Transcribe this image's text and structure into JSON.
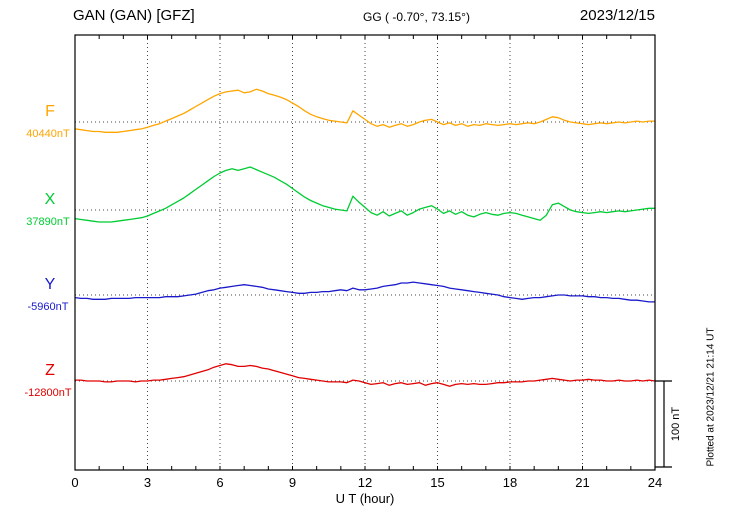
{
  "header": {
    "station": "GAN (GAN)  [GFZ]",
    "coords": "GG ( -0.70°,  73.15°)",
    "date": "2023/12/15"
  },
  "footer": {
    "xlabel": "U T (hour)"
  },
  "side": {
    "plotted_at": "Plotted at 2023/12/21 21:14 UT",
    "scale_label": "100 nT"
  },
  "chart_data": {
    "type": "line",
    "title": "GAN (GAN) [GFZ] magnetogram",
    "date": "2023/12/15",
    "xlabel": "U T (hour)",
    "x_start_hour": 0,
    "x_end_hour": 24,
    "sample_step_hours": 0.25,
    "x_ticks": [
      0,
      3,
      6,
      9,
      12,
      15,
      18,
      21,
      24
    ],
    "scale_bar_nT": 100,
    "scale_bar_label": "100 nT",
    "grid": "dotted vertical every 3 h, dotted baseline per trace",
    "series": [
      {
        "name": "F",
        "color": "#ffa500",
        "baseline_label": "40440nT",
        "baseline_nT": 40440,
        "delta_nT": [
          -8,
          -9,
          -10,
          -11,
          -11,
          -12,
          -12,
          -12,
          -11,
          -10,
          -9,
          -8,
          -6,
          -4,
          -2,
          1,
          4,
          7,
          10,
          14,
          18,
          22,
          26,
          30,
          33,
          35,
          36,
          37,
          34,
          35,
          38,
          36,
          33,
          31,
          29,
          26,
          22,
          18,
          13,
          9,
          6,
          4,
          2,
          1,
          0,
          -1,
          13,
          8,
          3,
          -2,
          -5,
          -3,
          -6,
          -4,
          -2,
          -5,
          -3,
          0,
          2,
          3,
          0,
          -3,
          -1,
          -4,
          -2,
          -5,
          -3,
          -4,
          -2,
          -3,
          -4,
          -3,
          -2,
          -3,
          -2,
          -1,
          -2,
          0,
          3,
          6,
          5,
          2,
          0,
          -1,
          -2,
          -3,
          -2,
          -1,
          -2,
          -1,
          0,
          -1,
          0,
          1,
          0,
          1,
          1
        ]
      },
      {
        "name": "X",
        "color": "#00cc33",
        "baseline_label": "37890nT",
        "baseline_nT": 37890,
        "delta_nT": [
          -10,
          -11,
          -12,
          -13,
          -14,
          -14,
          -14,
          -13,
          -12,
          -11,
          -10,
          -9,
          -7,
          -4,
          -1,
          2,
          6,
          10,
          14,
          19,
          24,
          29,
          34,
          39,
          43,
          46,
          48,
          46,
          48,
          50,
          47,
          44,
          41,
          38,
          34,
          30,
          25,
          20,
          15,
          11,
          8,
          5,
          3,
          1,
          0,
          -1,
          16,
          9,
          3,
          -3,
          -6,
          -2,
          -7,
          -4,
          -1,
          -6,
          -3,
          1,
          3,
          5,
          1,
          -4,
          -1,
          -5,
          -2,
          -6,
          -8,
          -5,
          -3,
          -5,
          -6,
          -4,
          -3,
          -4,
          -6,
          -8,
          -10,
          -12,
          -6,
          6,
          8,
          4,
          0,
          -2,
          -3,
          -4,
          -3,
          -2,
          -3,
          -2,
          -1,
          -2,
          -1,
          0,
          1,
          2,
          2
        ]
      },
      {
        "name": "Y",
        "color": "#1a1acc",
        "baseline_label": "-5960nT",
        "baseline_nT": -5960,
        "delta_nT": [
          -3,
          -4,
          -4,
          -5,
          -5,
          -5,
          -4,
          -4,
          -4,
          -4,
          -3,
          -3,
          -3,
          -3,
          -3,
          -2,
          -2,
          -2,
          -1,
          0,
          1,
          3,
          5,
          6,
          8,
          9,
          10,
          11,
          12,
          11,
          10,
          9,
          7,
          6,
          5,
          4,
          3,
          2,
          2,
          3,
          3,
          4,
          4,
          5,
          6,
          5,
          8,
          6,
          6,
          7,
          8,
          10,
          11,
          12,
          14,
          14,
          15,
          14,
          13,
          12,
          11,
          10,
          8,
          7,
          6,
          5,
          4,
          3,
          2,
          1,
          0,
          -2,
          -3,
          -4,
          -5,
          -4,
          -3,
          -3,
          -2,
          -1,
          0,
          0,
          -1,
          -1,
          -1,
          -2,
          -2,
          -3,
          -3,
          -4,
          -4,
          -5,
          -6,
          -6,
          -7,
          -8,
          -8
        ]
      },
      {
        "name": "Z",
        "color": "#e00000",
        "baseline_label": "-12800nT",
        "baseline_nT": -12800,
        "delta_nT": [
          1,
          1,
          0,
          0,
          0,
          -1,
          -1,
          0,
          0,
          0,
          -1,
          0,
          0,
          1,
          1,
          2,
          3,
          4,
          5,
          7,
          9,
          11,
          13,
          16,
          18,
          20,
          19,
          17,
          17,
          18,
          17,
          15,
          14,
          12,
          10,
          8,
          6,
          4,
          3,
          2,
          1,
          0,
          -1,
          -1,
          -1,
          -2,
          1,
          0,
          -2,
          -4,
          -3,
          -2,
          -5,
          -3,
          -2,
          -4,
          -3,
          -2,
          -5,
          -3,
          -2,
          -4,
          -6,
          -4,
          -3,
          -4,
          -3,
          -4,
          -4,
          -3,
          -2,
          -2,
          -1,
          -1,
          -1,
          0,
          0,
          1,
          2,
          3,
          2,
          1,
          0,
          1,
          1,
          2,
          1,
          1,
          0,
          0,
          1,
          0,
          0,
          1,
          0,
          1,
          0
        ]
      }
    ]
  }
}
